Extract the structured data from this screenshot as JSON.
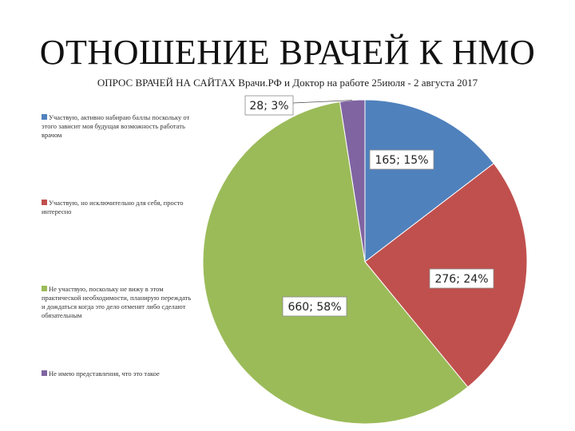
{
  "chart_data": {
    "type": "pie",
    "title": "ОТНОШЕНИЕ ВРАЧЕЙ К НМО",
    "subtitle": "ОПРОС ВРАЧЕЙ НА САЙТАХ Врачи.РФ и Доктор на работе 25июля - 2 августа 2017",
    "legend_position": "left",
    "slices": [
      {
        "label": "Участвую, активно набираю баллы поскольку от этого зависит моя будущая возможность работать врачом",
        "value": 165,
        "percent": 15,
        "data_label": "165; 15%",
        "color": "#4f81bd"
      },
      {
        "label": "Участвую, но исключительно для себя, просто интересно",
        "value": 276,
        "percent": 24,
        "data_label": "276; 24%",
        "color": "#c0504d"
      },
      {
        "label": "Не участвую, поскольку не вижу в этом практической необходимости, планирую переждать и дождаться когда это дело отменят либо сделают обязательным",
        "value": 660,
        "percent": 58,
        "data_label": "660; 58%",
        "color": "#9bbb59"
      },
      {
        "label": "Не имею представления, что это такое",
        "value": 28,
        "percent": 3,
        "data_label": "28; 3%",
        "color": "#8064a2"
      }
    ]
  }
}
